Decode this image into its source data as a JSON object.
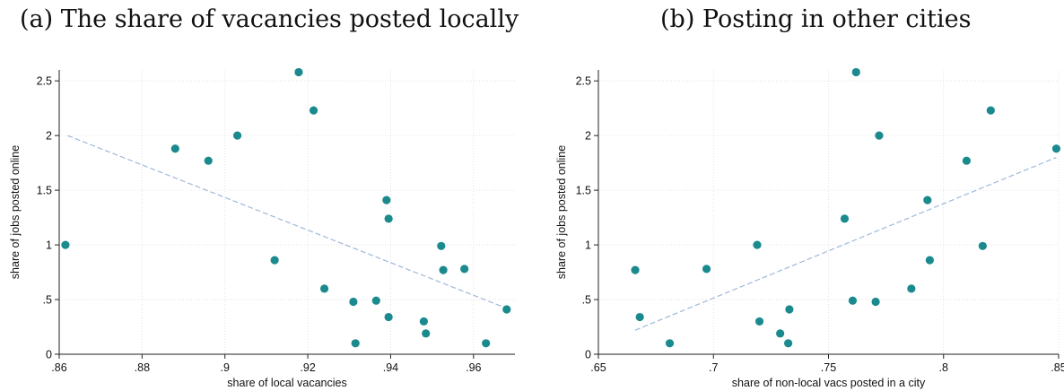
{
  "chart_data": [
    {
      "type": "scatter",
      "title": "(a) The share of vacancies posted locally",
      "xlabel": "share of local vacancies",
      "ylabel": "share of jobs posted online",
      "xlim": [
        0.86,
        0.97
      ],
      "ylim": [
        0,
        2.6
      ],
      "xticks": [
        0.86,
        0.88,
        0.9,
        0.92,
        0.94,
        0.96
      ],
      "xtick_labels": [
        ".86",
        ".88",
        ".9",
        ".92",
        ".94",
        ".96"
      ],
      "yticks": [
        0,
        0.5,
        1,
        1.5,
        2,
        2.5
      ],
      "ytick_labels": [
        "0",
        ".5",
        "1",
        "1.5",
        "2",
        "2.5"
      ],
      "grid": true,
      "marker_color": "#1b8a8f",
      "fit_color": "#9fb8d9",
      "fit_line": {
        "x": [
          0.862,
          0.968
        ],
        "y": [
          2.0,
          0.42
        ]
      },
      "points": [
        {
          "x": 0.8615,
          "y": 1.0
        },
        {
          "x": 0.888,
          "y": 1.88
        },
        {
          "x": 0.896,
          "y": 1.77
        },
        {
          "x": 0.903,
          "y": 2.0
        },
        {
          "x": 0.912,
          "y": 0.86
        },
        {
          "x": 0.9178,
          "y": 2.58
        },
        {
          "x": 0.9214,
          "y": 2.23
        },
        {
          "x": 0.924,
          "y": 0.6
        },
        {
          "x": 0.931,
          "y": 0.48
        },
        {
          "x": 0.9315,
          "y": 0.1
        },
        {
          "x": 0.9365,
          "y": 0.49
        },
        {
          "x": 0.939,
          "y": 1.41
        },
        {
          "x": 0.9395,
          "y": 1.24
        },
        {
          "x": 0.9395,
          "y": 0.34
        },
        {
          "x": 0.948,
          "y": 0.3
        },
        {
          "x": 0.9485,
          "y": 0.19
        },
        {
          "x": 0.9522,
          "y": 0.99
        },
        {
          "x": 0.9527,
          "y": 0.77
        },
        {
          "x": 0.9578,
          "y": 0.78
        },
        {
          "x": 0.963,
          "y": 0.1
        },
        {
          "x": 0.968,
          "y": 0.41
        }
      ]
    },
    {
      "type": "scatter",
      "title": "(b) Posting in other cities",
      "xlabel": "share of non-local vacs posted in a city",
      "ylabel": "share of jobs posted online",
      "xlim": [
        0.65,
        0.85
      ],
      "ylim": [
        0,
        2.6
      ],
      "xticks": [
        0.65,
        0.7,
        0.75,
        0.8,
        0.85
      ],
      "xtick_labels": [
        ".65",
        ".7",
        ".75",
        ".8",
        ".85"
      ],
      "yticks": [
        0,
        0.5,
        1,
        1.5,
        2,
        2.5
      ],
      "ytick_labels": [
        "0",
        ".5",
        "1",
        "1.5",
        "2",
        "2.5"
      ],
      "grid": true,
      "marker_color": "#1b8a8f",
      "fit_color": "#9fb8d9",
      "fit_line": {
        "x": [
          0.666,
          0.849
        ],
        "y": [
          0.22,
          1.8
        ]
      },
      "points": [
        {
          "x": 0.666,
          "y": 0.77
        },
        {
          "x": 0.668,
          "y": 0.34
        },
        {
          "x": 0.681,
          "y": 0.1
        },
        {
          "x": 0.697,
          "y": 0.78
        },
        {
          "x": 0.719,
          "y": 1.0
        },
        {
          "x": 0.72,
          "y": 0.3
        },
        {
          "x": 0.729,
          "y": 0.19
        },
        {
          "x": 0.7325,
          "y": 0.1
        },
        {
          "x": 0.733,
          "y": 0.41
        },
        {
          "x": 0.757,
          "y": 1.24
        },
        {
          "x": 0.7605,
          "y": 0.49
        },
        {
          "x": 0.762,
          "y": 2.58
        },
        {
          "x": 0.7705,
          "y": 0.48
        },
        {
          "x": 0.772,
          "y": 2.0
        },
        {
          "x": 0.786,
          "y": 0.6
        },
        {
          "x": 0.793,
          "y": 1.41
        },
        {
          "x": 0.794,
          "y": 0.86
        },
        {
          "x": 0.81,
          "y": 1.77
        },
        {
          "x": 0.817,
          "y": 0.99
        },
        {
          "x": 0.8205,
          "y": 2.23
        },
        {
          "x": 0.849,
          "y": 1.88
        }
      ]
    }
  ]
}
